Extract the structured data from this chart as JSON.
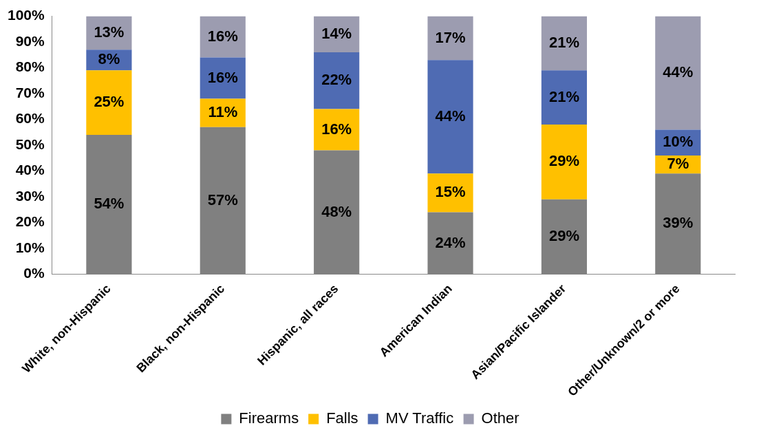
{
  "chart_data": {
    "type": "bar",
    "stacked": true,
    "categories": [
      "White, non-Hispanic",
      "Black, non-Hispanic",
      "Hispanic, all races",
      "American Indian",
      "Asian/Pacific Islander",
      "Other/Unknown/2 or more"
    ],
    "series": [
      {
        "name": "Firearms",
        "color": "#808080",
        "values": [
          54,
          57,
          48,
          24,
          29,
          39
        ]
      },
      {
        "name": "Falls",
        "color": "#ffc000",
        "values": [
          25,
          11,
          16,
          15,
          29,
          7
        ]
      },
      {
        "name": "MV Traffic",
        "color": "#4f6bb3",
        "values": [
          8,
          16,
          22,
          44,
          21,
          10
        ]
      },
      {
        "name": "Other",
        "color": "#9c9cb0",
        "values": [
          13,
          16,
          14,
          17,
          21,
          44
        ]
      }
    ],
    "ylim": [
      0,
      100
    ],
    "yticks": [
      {
        "value": 0,
        "label": "0%"
      },
      {
        "value": 10,
        "label": "10%"
      },
      {
        "value": 20,
        "label": "20%"
      },
      {
        "value": 30,
        "label": "30%"
      },
      {
        "value": 40,
        "label": "40%"
      },
      {
        "value": 50,
        "label": "50%"
      },
      {
        "value": 60,
        "label": "60%"
      },
      {
        "value": 70,
        "label": "70%"
      },
      {
        "value": 80,
        "label": "80%"
      },
      {
        "value": 90,
        "label": "90%"
      },
      {
        "value": 100,
        "label": "100%"
      }
    ],
    "value_labels": [
      [
        "54%",
        "57%",
        "48%",
        "24%",
        "29%",
        "39%"
      ],
      [
        "25%",
        "11%",
        "16%",
        "15%",
        "29%",
        "7%"
      ],
      [
        "8%",
        "16%",
        "22%",
        "44%",
        "21%",
        "10%"
      ],
      [
        "13%",
        "16%",
        "14%",
        "17%",
        "21%",
        "44%"
      ]
    ],
    "grid": false,
    "legend": "bottom"
  }
}
